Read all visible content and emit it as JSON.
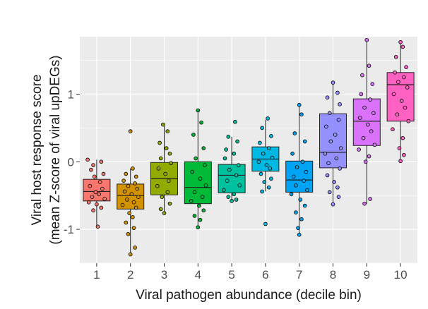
{
  "chart_data": {
    "type": "boxplot",
    "title": "",
    "xlabel": "Viral pathogen abundance (decile bin)",
    "ylabel_line1": "Viral host response score",
    "ylabel_line2": "(mean Z-score of viral upDEGs)",
    "ylim": [
      -1.5,
      1.85
    ],
    "yticks": [
      -1,
      0,
      1
    ],
    "ytick_labels": [
      "-1",
      "0",
      "1"
    ],
    "grid": true,
    "categories": [
      "1",
      "2",
      "3",
      "4",
      "5",
      "6",
      "7",
      "8",
      "9",
      "10"
    ],
    "colors": [
      "#F8766D",
      "#D39200",
      "#93AA00",
      "#00BA38",
      "#00C19F",
      "#00B9E3",
      "#00A4F5",
      "#9590FF",
      "#DB72FB",
      "#FF61C3"
    ],
    "boxes": [
      {
        "q1": -0.58,
        "median": -0.44,
        "q3": -0.26,
        "whisker_low": -0.96,
        "whisker_high": 0.03
      },
      {
        "q1": -0.7,
        "median": -0.5,
        "q3": -0.33,
        "whisker_low": -1.37,
        "whisker_high": -0.1
      },
      {
        "q1": -0.49,
        "median": -0.25,
        "q3": -0.01,
        "whisker_low": -0.76,
        "whisker_high": 0.55
      },
      {
        "q1": -0.62,
        "median": -0.38,
        "q3": 0.0,
        "whisker_low": -0.97,
        "whisker_high": 0.76
      },
      {
        "q1": -0.46,
        "median": -0.2,
        "q3": -0.04,
        "whisker_low": -0.58,
        "whisker_high": 0.37
      },
      {
        "q1": -0.14,
        "median": 0.04,
        "q3": 0.22,
        "whisker_low": -0.44,
        "whisker_high": 0.62
      },
      {
        "q1": -0.45,
        "median": -0.27,
        "q3": 0.01,
        "whisker_low": -1.08,
        "whisker_high": 0.84
      },
      {
        "q1": -0.09,
        "median": 0.14,
        "q3": 0.71,
        "whisker_low": -0.63,
        "whisker_high": 1.17
      },
      {
        "q1": 0.24,
        "median": 0.6,
        "q3": 0.93,
        "whisker_low": -0.62,
        "whisker_high": 1.8
      },
      {
        "q1": 0.6,
        "median": 1.14,
        "q3": 1.32,
        "whisker_low": 0.01,
        "whisker_high": 1.77
      }
    ],
    "points": [
      [
        [
          -0.08,
          0.03
        ],
        [
          0.04,
          0.0
        ],
        [
          -0.03,
          -0.05
        ],
        [
          -0.05,
          -0.12
        ],
        [
          0.06,
          -0.18
        ],
        [
          -0.02,
          -0.22
        ],
        [
          0.03,
          -0.3
        ],
        [
          -0.06,
          -0.36
        ],
        [
          0.05,
          -0.4
        ],
        [
          -0.01,
          -0.45
        ],
        [
          0.02,
          -0.48
        ],
        [
          -0.04,
          -0.52
        ],
        [
          0.07,
          -0.55
        ],
        [
          -0.07,
          -0.6
        ],
        [
          0.0,
          -0.63
        ],
        [
          0.04,
          -0.68
        ],
        [
          -0.03,
          -0.72
        ],
        [
          0.01,
          -0.96
        ]
      ],
      [
        [
          0.0,
          0.45
        ],
        [
          0.02,
          -0.1
        ],
        [
          -0.04,
          -0.18
        ],
        [
          0.05,
          -0.22
        ],
        [
          -0.06,
          -0.28
        ],
        [
          0.04,
          -0.32
        ],
        [
          -0.02,
          -0.36
        ],
        [
          0.06,
          -0.4
        ],
        [
          -0.05,
          -0.44
        ],
        [
          0.01,
          -0.48
        ],
        [
          0.07,
          -0.52
        ],
        [
          -0.03,
          -0.56
        ],
        [
          0.03,
          -0.6
        ],
        [
          -0.07,
          -0.64
        ],
        [
          0.05,
          -0.68
        ],
        [
          -0.01,
          -0.76
        ],
        [
          0.02,
          -0.82
        ],
        [
          -0.04,
          -0.9
        ],
        [
          0.03,
          -0.98
        ],
        [
          -0.02,
          -1.07
        ],
        [
          0.04,
          -1.27
        ],
        [
          0.0,
          -1.37
        ]
      ],
      [
        [
          -0.01,
          0.55
        ],
        [
          0.03,
          0.45
        ],
        [
          -0.04,
          0.28
        ],
        [
          0.02,
          0.2
        ],
        [
          0.05,
          0.12
        ],
        [
          -0.03,
          0.05
        ],
        [
          0.06,
          -0.02
        ],
        [
          -0.05,
          -0.1
        ],
        [
          0.01,
          -0.18
        ],
        [
          0.04,
          -0.28
        ],
        [
          -0.06,
          -0.36
        ],
        [
          0.03,
          -0.45
        ],
        [
          -0.02,
          -0.52
        ],
        [
          0.05,
          -0.62
        ],
        [
          -0.03,
          -0.7
        ],
        [
          0.0,
          -0.76
        ]
      ],
      [
        [
          0.0,
          0.76
        ],
        [
          0.03,
          0.58
        ],
        [
          -0.04,
          0.4
        ],
        [
          0.05,
          0.2
        ],
        [
          -0.02,
          0.05
        ],
        [
          0.06,
          -0.05
        ],
        [
          -0.05,
          -0.15
        ],
        [
          0.02,
          -0.25
        ],
        [
          0.07,
          -0.35
        ],
        [
          -0.03,
          -0.45
        ],
        [
          0.04,
          -0.52
        ],
        [
          -0.06,
          -0.58
        ],
        [
          0.01,
          -0.65
        ],
        [
          0.05,
          -0.72
        ],
        [
          -0.03,
          -0.8
        ],
        [
          0.02,
          -0.86
        ],
        [
          0.0,
          -0.97
        ]
      ],
      [
        [
          0.03,
          0.59
        ],
        [
          -0.03,
          0.37
        ],
        [
          0.05,
          0.3
        ],
        [
          -0.05,
          0.18
        ],
        [
          0.02,
          0.12
        ],
        [
          -0.06,
          0.05
        ],
        [
          0.06,
          -0.05
        ],
        [
          -0.02,
          -0.12
        ],
        [
          0.04,
          -0.2
        ],
        [
          -0.04,
          -0.28
        ],
        [
          0.07,
          -0.35
        ],
        [
          -0.07,
          -0.42
        ],
        [
          0.02,
          -0.48
        ],
        [
          -0.03,
          -0.52
        ],
        [
          0.04,
          -0.56
        ],
        [
          0.0,
          -0.58
        ]
      ],
      [
        [
          0.02,
          0.64
        ],
        [
          -0.03,
          0.5
        ],
        [
          0.05,
          0.38
        ],
        [
          -0.05,
          0.28
        ],
        [
          0.03,
          0.2
        ],
        [
          -0.02,
          0.12
        ],
        [
          0.06,
          0.06
        ],
        [
          -0.06,
          0.0
        ],
        [
          0.01,
          -0.05
        ],
        [
          0.04,
          -0.1
        ],
        [
          -0.04,
          -0.18
        ],
        [
          0.05,
          -0.25
        ],
        [
          -0.01,
          -0.3
        ],
        [
          0.03,
          -0.38
        ],
        [
          -0.03,
          -0.44
        ],
        [
          0.0,
          -0.92
        ]
      ],
      [
        [
          0.0,
          0.84
        ],
        [
          0.02,
          0.7
        ],
        [
          -0.04,
          0.42
        ],
        [
          0.05,
          0.3
        ],
        [
          -0.06,
          0.12
        ],
        [
          0.03,
          0.0
        ],
        [
          -0.02,
          -0.08
        ],
        [
          0.06,
          -0.15
        ],
        [
          -0.05,
          -0.22
        ],
        [
          0.04,
          -0.28
        ],
        [
          -0.03,
          -0.35
        ],
        [
          0.07,
          -0.42
        ],
        [
          -0.07,
          -0.48
        ],
        [
          0.01,
          -0.56
        ],
        [
          0.05,
          -0.65
        ],
        [
          -0.03,
          -0.75
        ],
        [
          0.02,
          -0.85
        ],
        [
          -0.01,
          -0.98
        ],
        [
          0.0,
          -1.08
        ]
      ],
      [
        [
          0.0,
          1.17
        ],
        [
          0.04,
          1.02
        ],
        [
          -0.05,
          0.95
        ],
        [
          0.06,
          0.85
        ],
        [
          -0.03,
          0.72
        ],
        [
          0.05,
          0.62
        ],
        [
          -0.06,
          0.52
        ],
        [
          0.02,
          0.4
        ],
        [
          -0.02,
          0.3
        ],
        [
          0.07,
          0.2
        ],
        [
          -0.07,
          0.12
        ],
        [
          0.03,
          0.05
        ],
        [
          -0.04,
          -0.02
        ],
        [
          0.06,
          -0.1
        ],
        [
          -0.05,
          -0.2
        ],
        [
          0.01,
          -0.3
        ],
        [
          0.04,
          -0.38
        ],
        [
          -0.03,
          -0.45
        ],
        [
          0.05,
          -0.52
        ],
        [
          0.0,
          -0.63
        ]
      ],
      [
        [
          0.0,
          1.8
        ],
        [
          0.02,
          1.42
        ],
        [
          -0.04,
          1.28
        ],
        [
          0.05,
          1.15
        ],
        [
          -0.05,
          1.0
        ],
        [
          0.03,
          0.92
        ],
        [
          -0.02,
          0.8
        ],
        [
          0.06,
          0.72
        ],
        [
          -0.06,
          0.65
        ],
        [
          0.01,
          0.55
        ],
        [
          0.04,
          0.45
        ],
        [
          -0.03,
          0.35
        ],
        [
          0.07,
          0.25
        ],
        [
          -0.07,
          0.18
        ],
        [
          0.02,
          0.08
        ],
        [
          -0.01,
          0.0
        ],
        [
          0.03,
          -0.55
        ],
        [
          -0.02,
          -0.62
        ]
      ],
      [
        [
          0.0,
          1.77
        ],
        [
          0.02,
          1.7
        ],
        [
          -0.04,
          1.55
        ],
        [
          0.05,
          1.4
        ],
        [
          -0.05,
          1.32
        ],
        [
          0.03,
          1.25
        ],
        [
          -0.02,
          1.18
        ],
        [
          0.06,
          1.1
        ],
        [
          -0.06,
          1.0
        ],
        [
          0.01,
          0.9
        ],
        [
          0.04,
          0.8
        ],
        [
          -0.03,
          0.7
        ],
        [
          0.07,
          0.6
        ],
        [
          -0.07,
          0.48
        ],
        [
          0.02,
          0.35
        ],
        [
          -0.01,
          0.2
        ],
        [
          0.03,
          0.1
        ],
        [
          0.0,
          0.01
        ]
      ]
    ]
  }
}
